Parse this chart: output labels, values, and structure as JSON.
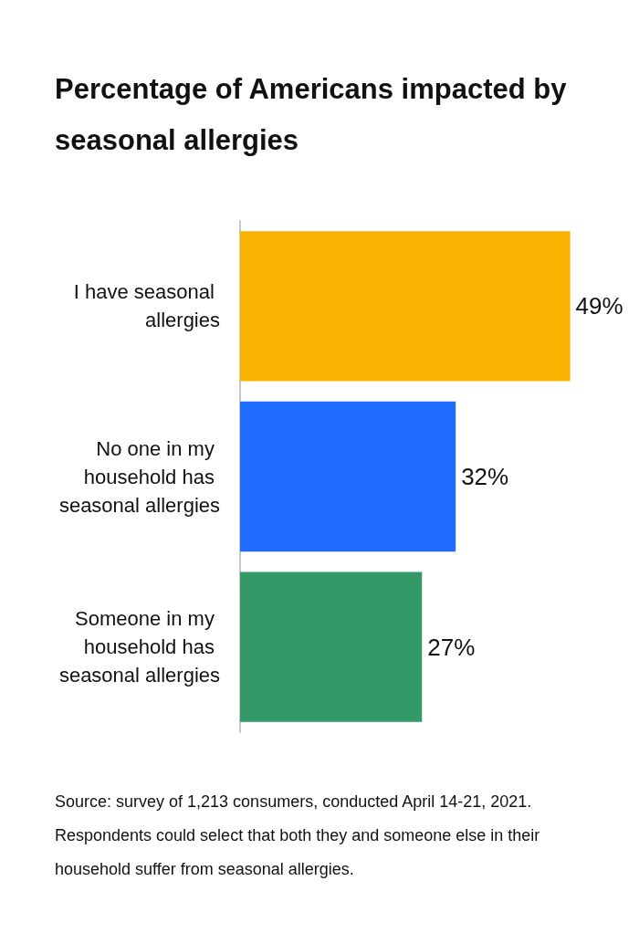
{
  "chart_data": {
    "type": "bar",
    "orientation": "horizontal",
    "title": "Percentage of Americans impacted by seasonal allergies",
    "categories": [
      "I have seasonal allergies",
      "No one in my household has seasonal allergies",
      "Someone in my household has seasonal allergies"
    ],
    "values": [
      49,
      32,
      27
    ],
    "colors": [
      "#f9b300",
      "#1f6bff",
      "#339966"
    ],
    "value_labels": [
      "49%",
      "32%",
      "27%"
    ],
    "grid": false,
    "annotations": [
      "Source: survey of 1,213 consumers, conducted April 14-21, 2021. Respondents could select that both they and someone else in their household suffer from seasonal allergies."
    ]
  }
}
